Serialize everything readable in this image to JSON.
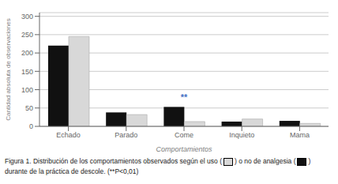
{
  "chart_data": {
    "type": "bar",
    "title": [
      "Figura 1. Distribución de los comportamientos observados según el uso (",
      ") o no de analgesia (",
      ") durante de la práctica de descole. (**P<0,01)"
    ],
    "x_label": "Comportamientos",
    "y_label": "Cantidad absoluta de observaciones",
    "categories": [
      "Echado",
      "Parado",
      "Come",
      "Inquieto",
      "Mama"
    ],
    "series": [
      {
        "color": "#111111",
        "values": [
          220,
          38,
          53,
          13,
          15
        ]
      },
      {
        "color": "#d8d8d8",
        "values": [
          245,
          32,
          13,
          20,
          8
        ]
      }
    ],
    "ylim": [
      0,
      310
    ],
    "yticks": [
      0,
      50,
      100,
      150,
      200,
      250,
      300
    ],
    "grid": true,
    "annotations": [
      {
        "text": "**",
        "category": "Come",
        "color": "#4472C4"
      }
    ]
  }
}
